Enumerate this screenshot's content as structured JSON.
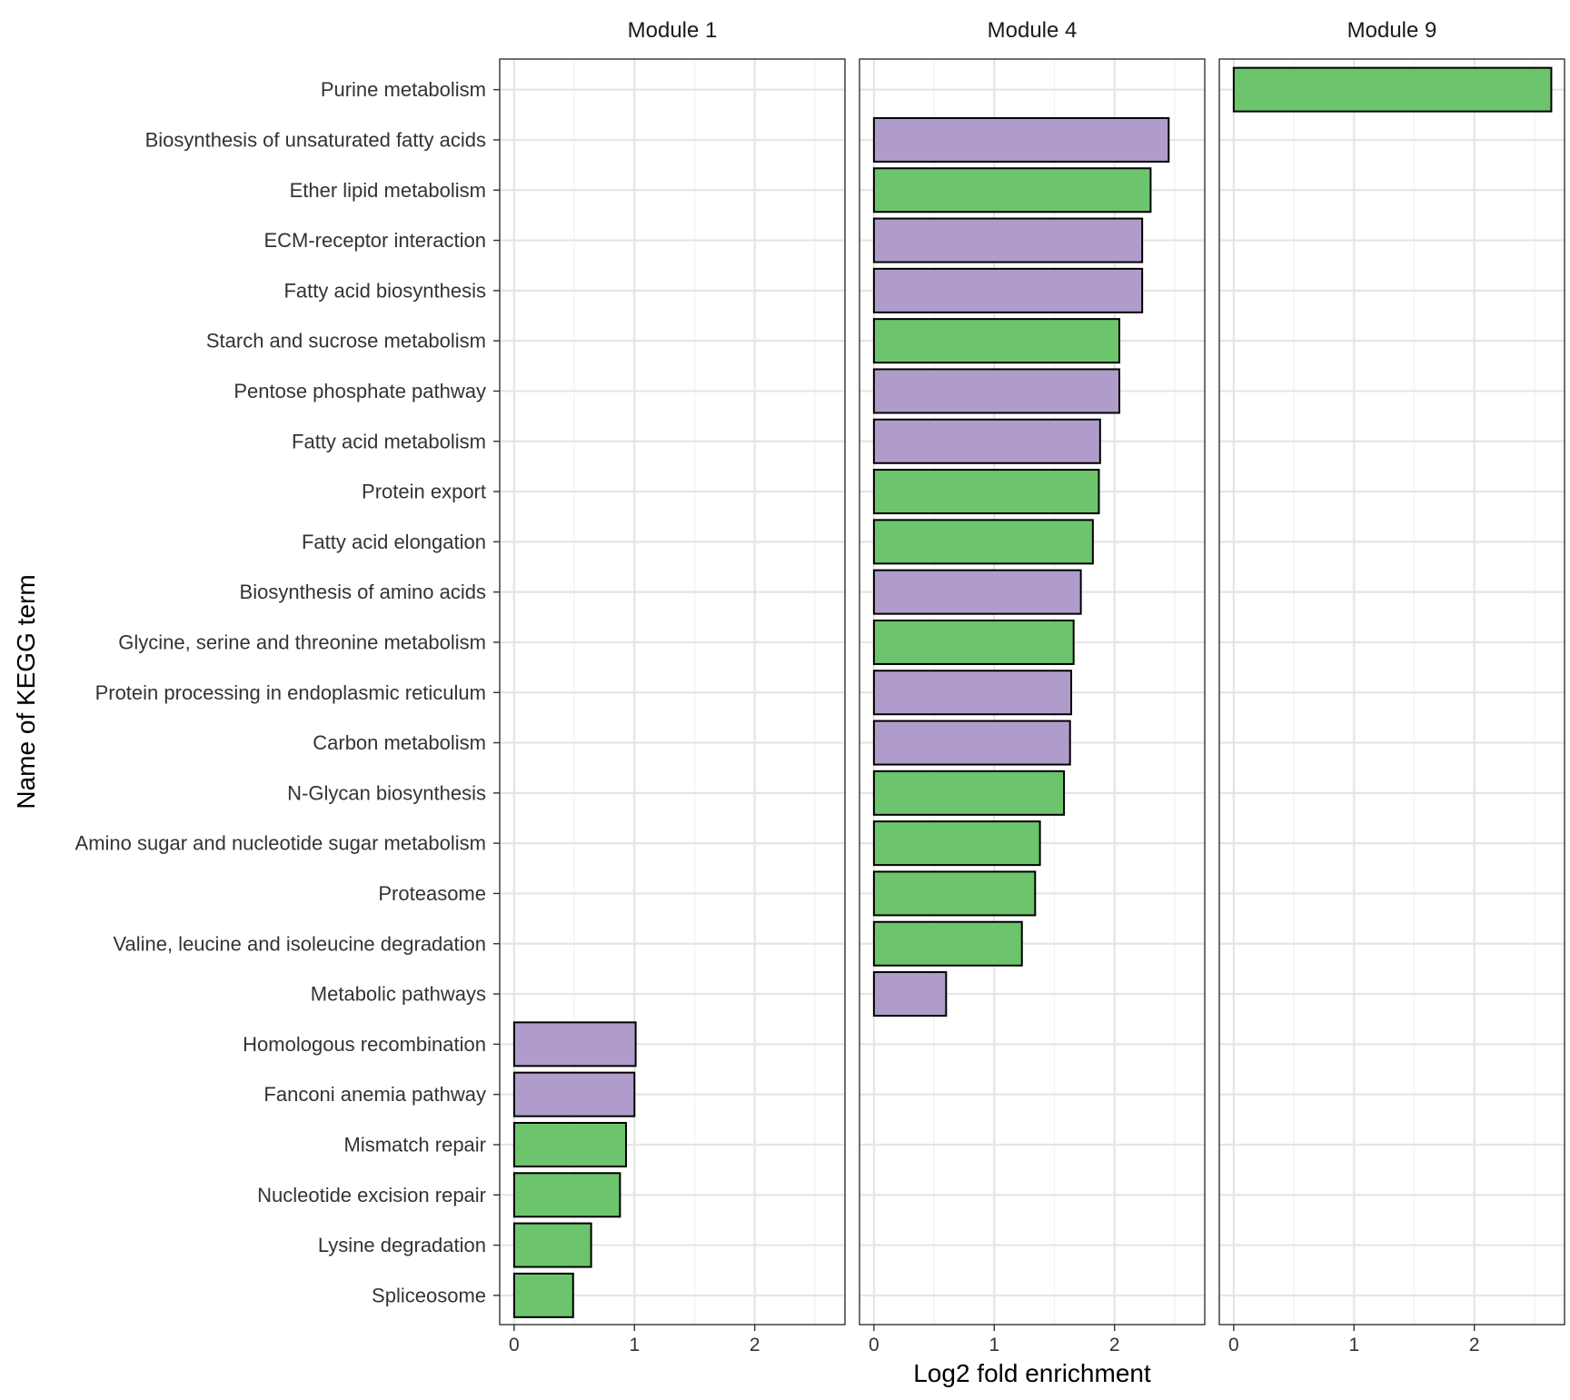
{
  "chart_data": {
    "type": "bar",
    "orientation": "horizontal",
    "xlabel": "Log2 fold enrichment",
    "ylabel": "Name of KEGG term",
    "xlim": [
      -0.12,
      2.75
    ],
    "x_ticks": [
      0,
      1,
      2
    ],
    "grid": true,
    "colors": {
      "purple": "#b09ccb",
      "green": "#6cc46c"
    },
    "categories": [
      "Purine metabolism",
      "Biosynthesis of unsaturated fatty acids",
      "Ether lipid metabolism",
      "ECM-receptor interaction",
      "Fatty acid biosynthesis",
      "Starch and sucrose metabolism",
      "Pentose phosphate pathway",
      "Fatty acid metabolism",
      "Protein export",
      "Fatty acid elongation",
      "Biosynthesis of amino acids",
      "Glycine, serine and threonine metabolism",
      "Protein processing in endoplasmic reticulum",
      "Carbon metabolism",
      "N-Glycan biosynthesis",
      "Amino sugar and nucleotide sugar metabolism",
      "Proteasome",
      "Valine, leucine and isoleucine degradation",
      "Metabolic pathways",
      "Homologous recombination",
      "Fanconi anemia pathway",
      "Mismatch repair",
      "Nucleotide excision repair",
      "Lysine degradation",
      "Spliceosome"
    ],
    "panels": [
      {
        "label": "Module 1",
        "bars": [
          {
            "category": "Homologous recombination",
            "value": 1.01,
            "color": "purple"
          },
          {
            "category": "Fanconi anemia pathway",
            "value": 1.0,
            "color": "purple"
          },
          {
            "category": "Mismatch repair",
            "value": 0.93,
            "color": "green"
          },
          {
            "category": "Nucleotide excision repair",
            "value": 0.88,
            "color": "green"
          },
          {
            "category": "Lysine degradation",
            "value": 0.64,
            "color": "green"
          },
          {
            "category": "Spliceosome",
            "value": 0.49,
            "color": "green"
          }
        ]
      },
      {
        "label": "Module 4",
        "bars": [
          {
            "category": "Biosynthesis of unsaturated fatty acids",
            "value": 2.45,
            "color": "purple"
          },
          {
            "category": "Ether lipid metabolism",
            "value": 2.3,
            "color": "green"
          },
          {
            "category": "ECM-receptor interaction",
            "value": 2.23,
            "color": "purple"
          },
          {
            "category": "Fatty acid biosynthesis",
            "value": 2.23,
            "color": "purple"
          },
          {
            "category": "Starch and sucrose metabolism",
            "value": 2.04,
            "color": "green"
          },
          {
            "category": "Pentose phosphate pathway",
            "value": 2.04,
            "color": "purple"
          },
          {
            "category": "Fatty acid metabolism",
            "value": 1.88,
            "color": "purple"
          },
          {
            "category": "Protein export",
            "value": 1.87,
            "color": "green"
          },
          {
            "category": "Fatty acid elongation",
            "value": 1.82,
            "color": "green"
          },
          {
            "category": "Biosynthesis of amino acids",
            "value": 1.72,
            "color": "purple"
          },
          {
            "category": "Glycine, serine and threonine metabolism",
            "value": 1.66,
            "color": "green"
          },
          {
            "category": "Protein processing in endoplasmic reticulum",
            "value": 1.64,
            "color": "purple"
          },
          {
            "category": "Carbon metabolism",
            "value": 1.63,
            "color": "purple"
          },
          {
            "category": "N-Glycan biosynthesis",
            "value": 1.58,
            "color": "green"
          },
          {
            "category": "Amino sugar and nucleotide sugar metabolism",
            "value": 1.38,
            "color": "green"
          },
          {
            "category": "Proteasome",
            "value": 1.34,
            "color": "green"
          },
          {
            "category": "Valine, leucine and isoleucine degradation",
            "value": 1.23,
            "color": "green"
          },
          {
            "category": "Metabolic pathways",
            "value": 0.6,
            "color": "purple"
          }
        ]
      },
      {
        "label": "Module 9",
        "bars": [
          {
            "category": "Purine metabolism",
            "value": 2.64,
            "color": "green"
          }
        ]
      }
    ]
  }
}
